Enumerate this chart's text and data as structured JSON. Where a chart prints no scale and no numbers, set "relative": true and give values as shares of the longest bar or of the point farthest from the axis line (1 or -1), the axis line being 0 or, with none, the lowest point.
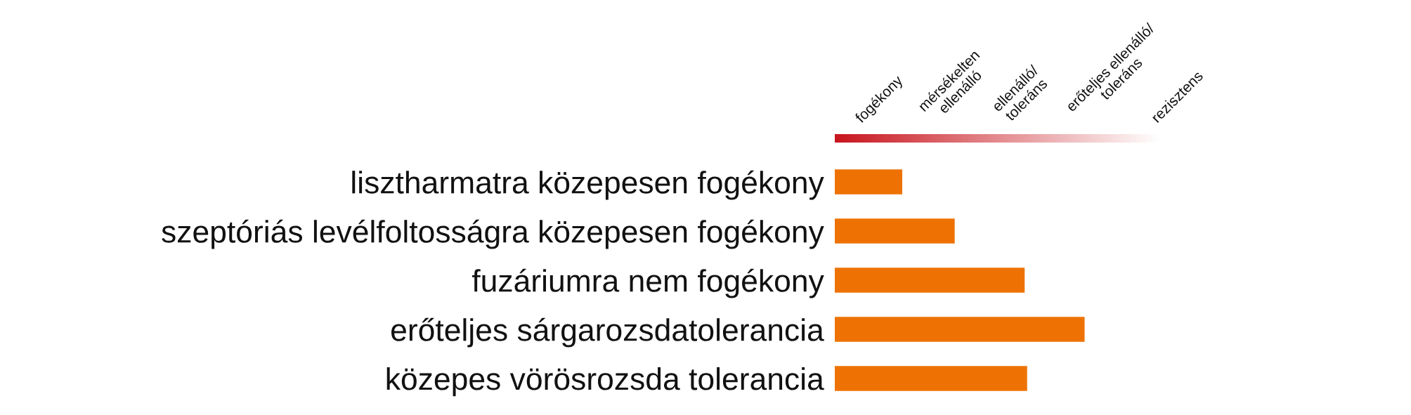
{
  "chart_data": {
    "type": "bar",
    "orientation": "horizontal",
    "relative": true,
    "categories": [
      "lisztharmatra közepesen fogékony",
      "szeptóriás levélfoltosságra közepesen fogékony",
      "fuzáriumra nem fogékony",
      "erőteljes sárgarozsdatolerancia",
      "közepes vörösrozsda tolerancia"
    ],
    "values": [
      0.27,
      0.48,
      0.76,
      1,
      0.77
    ],
    "color": "#ee7203",
    "annotations": [
      "fogékony",
      "mérsékelten\nellenálló",
      "ellenálló/\ntoleráns",
      "erőteljes ellenálló/\ntoleráns",
      "rezisztens"
    ]
  }
}
